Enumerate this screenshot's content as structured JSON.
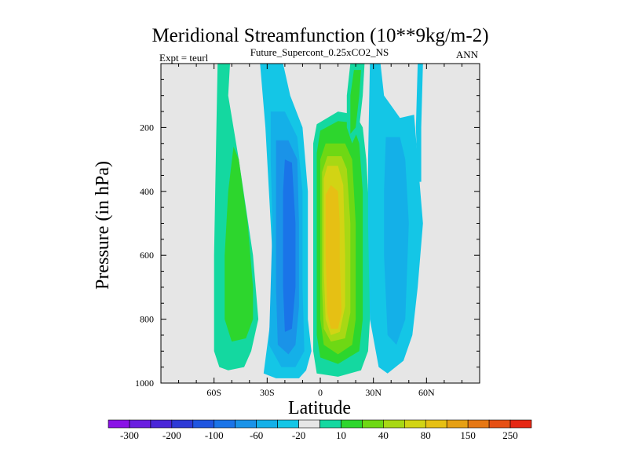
{
  "chart_data": {
    "type": "heatmap",
    "title": "Meridional Streamfunction (10**9kg/m-2)",
    "subtitle_center": "Future_Supercont_0.25xCO2_NS",
    "subtitle_left": "Expt = teurl",
    "subtitle_right": "ANN",
    "xlabel": "Latitude",
    "ylabel": "Pressure (in hPa)",
    "xlim": [
      -90,
      90
    ],
    "ylim": [
      1000,
      0
    ],
    "xticks": [
      {
        "value": -60,
        "label": "60S"
      },
      {
        "value": -30,
        "label": "30S"
      },
      {
        "value": 0,
        "label": "0"
      },
      {
        "value": 30,
        "label": "30N"
      },
      {
        "value": 60,
        "label": "60N"
      }
    ],
    "yticks": [
      {
        "value": 200,
        "label": "200"
      },
      {
        "value": 400,
        "label": "400"
      },
      {
        "value": 600,
        "label": "600"
      },
      {
        "value": 800,
        "label": "800"
      },
      {
        "value": 1000,
        "label": "1000"
      }
    ],
    "background_color": "#e6e6e6",
    "colorbar": {
      "colors": [
        "#8a12e6",
        "#6a1ee0",
        "#4a26d8",
        "#2e3ad6",
        "#1f55e0",
        "#1a74e8",
        "#1a93e8",
        "#14b0e8",
        "#14c6e6",
        "#e6e6e6",
        "#14d8a0",
        "#2dd62d",
        "#6ed814",
        "#a8d814",
        "#d2d414",
        "#e6c014",
        "#e6a014",
        "#e67814",
        "#e65014",
        "#e62814"
      ],
      "tick_labels": [
        {
          "boundary": 1,
          "label": "-300"
        },
        {
          "boundary": 3,
          "label": "-200"
        },
        {
          "boundary": 5,
          "label": "-100"
        },
        {
          "boundary": 7,
          "label": "-60"
        },
        {
          "boundary": 9,
          "label": "-20"
        },
        {
          "boundary": 11,
          "label": "10"
        },
        {
          "boundary": 13,
          "label": "40"
        },
        {
          "boundary": 15,
          "label": "80"
        },
        {
          "boundary": 17,
          "label": "150"
        },
        {
          "boundary": 19,
          "label": "250"
        }
      ]
    },
    "contour_bands": [
      {
        "name": "sh-positive-cell",
        "level": 10,
        "color": "#14d8a0",
        "polygon": [
          [
            -58,
            0
          ],
          [
            -51,
            0
          ],
          [
            -52,
            100
          ],
          [
            -46,
            300
          ],
          [
            -38,
            600
          ],
          [
            -35,
            800
          ],
          [
            -39,
            900
          ],
          [
            -43,
            950
          ],
          [
            -52,
            960
          ],
          [
            -57,
            950
          ],
          [
            -60,
            900
          ],
          [
            -60,
            600
          ],
          [
            -59,
            300
          ]
        ]
      },
      {
        "name": "sh-positive-core",
        "level": 40,
        "color": "#2dd62d",
        "polygon": [
          [
            -49,
            260
          ],
          [
            -46,
            300
          ],
          [
            -41,
            500
          ],
          [
            -38,
            700
          ],
          [
            -38,
            800
          ],
          [
            -42,
            860
          ],
          [
            -50,
            870
          ],
          [
            -54,
            800
          ],
          [
            -54,
            600
          ],
          [
            -52,
            400
          ]
        ]
      },
      {
        "name": "sh-negative-outer",
        "level": -10,
        "color": "#14c6e6",
        "polygon": [
          [
            -34,
            0
          ],
          [
            -21,
            0
          ],
          [
            -17,
            100
          ],
          [
            -10,
            200
          ],
          [
            -7,
            400
          ],
          [
            -7,
            800
          ],
          [
            -5,
            900
          ],
          [
            -8,
            960
          ],
          [
            -12,
            985
          ],
          [
            -25,
            985
          ],
          [
            -32,
            970
          ],
          [
            -28,
            800
          ],
          [
            -27,
            600
          ],
          [
            -31,
            200
          ]
        ]
      },
      {
        "name": "sh-negative-1",
        "level": -20,
        "color": "#14b0e8",
        "polygon": [
          [
            -28,
            150
          ],
          [
            -20,
            150
          ],
          [
            -13,
            230
          ],
          [
            -10,
            400
          ],
          [
            -10,
            700
          ],
          [
            -9,
            900
          ],
          [
            -14,
            950
          ],
          [
            -22,
            950
          ],
          [
            -29,
            880
          ],
          [
            -28,
            700
          ],
          [
            -27,
            500
          ],
          [
            -28,
            300
          ]
        ]
      },
      {
        "name": "sh-negative-2",
        "level": -40,
        "color": "#1a93e8",
        "polygon": [
          [
            -25,
            240
          ],
          [
            -18,
            240
          ],
          [
            -13,
            300
          ],
          [
            -12,
            500
          ],
          [
            -12,
            760
          ],
          [
            -14,
            880
          ],
          [
            -18,
            910
          ],
          [
            -24,
            880
          ],
          [
            -25,
            700
          ],
          [
            -25,
            400
          ]
        ]
      },
      {
        "name": "sh-negative-3",
        "level": -60,
        "color": "#1a74e8",
        "polygon": [
          [
            -20,
            300
          ],
          [
            -16,
            310
          ],
          [
            -14,
            500
          ],
          [
            -14,
            700
          ],
          [
            -16,
            830
          ],
          [
            -20,
            840
          ],
          [
            -21,
            700
          ],
          [
            -21,
            400
          ]
        ]
      },
      {
        "name": "trop-positive-1",
        "level": 10,
        "color": "#14d8a0",
        "polygon": [
          [
            -4,
            250
          ],
          [
            -2,
            190
          ],
          [
            10,
            150
          ],
          [
            20,
            160
          ],
          [
            24,
            200
          ],
          [
            26,
            300
          ],
          [
            28,
            500
          ],
          [
            28,
            800
          ],
          [
            27,
            900
          ],
          [
            23,
            960
          ],
          [
            10,
            980
          ],
          [
            -2,
            970
          ],
          [
            -4,
            900
          ]
        ]
      },
      {
        "name": "trop-positive-2",
        "level": 20,
        "color": "#2dd62d",
        "polygon": [
          [
            -2,
            280
          ],
          [
            0,
            210
          ],
          [
            10,
            180
          ],
          [
            18,
            185
          ],
          [
            22,
            250
          ],
          [
            24,
            400
          ],
          [
            24,
            800
          ],
          [
            22,
            900
          ],
          [
            10,
            940
          ],
          [
            0,
            920
          ],
          [
            -2,
            850
          ]
        ]
      },
      {
        "name": "trop-positive-3",
        "level": 40,
        "color": "#6ed814",
        "polygon": [
          [
            0,
            300
          ],
          [
            3,
            250
          ],
          [
            14,
            250
          ],
          [
            18,
            300
          ],
          [
            20,
            500
          ],
          [
            20,
            800
          ],
          [
            18,
            880
          ],
          [
            10,
            910
          ],
          [
            2,
            880
          ],
          [
            0,
            800
          ]
        ]
      },
      {
        "name": "trop-positive-4",
        "level": 60,
        "color": "#a8d814",
        "polygon": [
          [
            1,
            340
          ],
          [
            4,
            290
          ],
          [
            12,
            290
          ],
          [
            15,
            330
          ],
          [
            17,
            500
          ],
          [
            17,
            780
          ],
          [
            14,
            860
          ],
          [
            6,
            870
          ],
          [
            2,
            830
          ],
          [
            1,
            700
          ]
        ]
      },
      {
        "name": "trop-positive-5",
        "level": 80,
        "color": "#d2d414",
        "polygon": [
          [
            2,
            360
          ],
          [
            4,
            320
          ],
          [
            10,
            320
          ],
          [
            13,
            380
          ],
          [
            14,
            600
          ],
          [
            14,
            760
          ],
          [
            11,
            840
          ],
          [
            6,
            850
          ],
          [
            3,
            800
          ],
          [
            2,
            650
          ]
        ]
      },
      {
        "name": "trop-positive-core",
        "level": 100,
        "color": "#e6c014",
        "polygon": [
          [
            3,
            410
          ],
          [
            6,
            380
          ],
          [
            10,
            400
          ],
          [
            11,
            500
          ],
          [
            11,
            620
          ],
          [
            12,
            780
          ],
          [
            10,
            830
          ],
          [
            6,
            830
          ],
          [
            4,
            780
          ],
          [
            3,
            600
          ]
        ]
      },
      {
        "name": "nh-upper-positive",
        "level": 10,
        "color": "#14d8a0",
        "polygon": [
          [
            17,
            0
          ],
          [
            25,
            0
          ],
          [
            24,
            100
          ],
          [
            22,
            200
          ],
          [
            18,
            250
          ],
          [
            15,
            200
          ],
          [
            15,
            100
          ]
        ]
      },
      {
        "name": "nh-upper-positive-core",
        "level": 20,
        "color": "#2dd62d",
        "polygon": [
          [
            19,
            20
          ],
          [
            23,
            20
          ],
          [
            22,
            100
          ],
          [
            20,
            200
          ],
          [
            17,
            220
          ],
          [
            17,
            100
          ]
        ]
      },
      {
        "name": "nh-negative-outer",
        "level": -10,
        "color": "#14c6e6",
        "polygon": [
          [
            28,
            0
          ],
          [
            34,
            0
          ],
          [
            36,
            100
          ],
          [
            45,
            170
          ],
          [
            53,
            160
          ],
          [
            55,
            300
          ],
          [
            58,
            500
          ],
          [
            55,
            700
          ],
          [
            52,
            850
          ],
          [
            47,
            930
          ],
          [
            38,
            970
          ],
          [
            33,
            950
          ],
          [
            28,
            800
          ],
          [
            27,
            500
          ],
          [
            27,
            300
          ]
        ]
      },
      {
        "name": "nh-negative-1",
        "level": -20,
        "color": "#14b0e8",
        "polygon": [
          [
            37,
            230
          ],
          [
            45,
            230
          ],
          [
            48,
            300
          ],
          [
            50,
            500
          ],
          [
            48,
            800
          ],
          [
            43,
            880
          ],
          [
            38,
            850
          ],
          [
            36,
            600
          ],
          [
            36,
            400
          ]
        ]
      },
      {
        "name": "nh-high-negative",
        "level": -10,
        "color": "#14c6e6",
        "polygon": [
          [
            55,
            0
          ],
          [
            58,
            0
          ],
          [
            57,
            200
          ],
          [
            57,
            370
          ],
          [
            55,
            370
          ],
          [
            54,
            200
          ]
        ]
      }
    ]
  }
}
